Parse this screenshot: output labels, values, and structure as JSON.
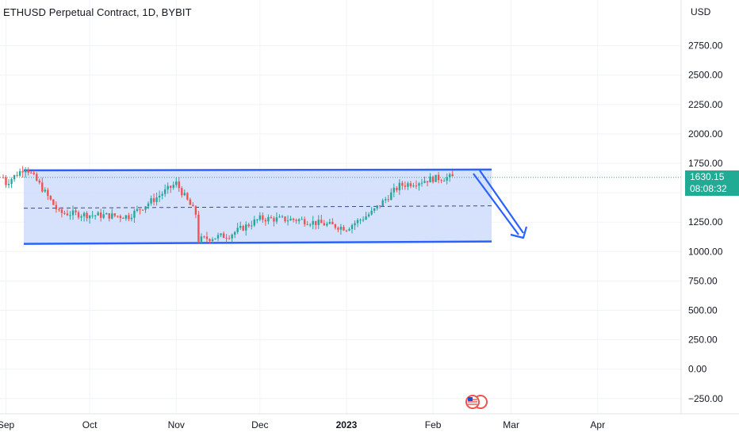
{
  "header": {
    "title": "ETHUSD Perpetual Contract, 1D, BYBIT"
  },
  "price_axis": {
    "unit": "USD"
  },
  "last_price": {
    "value": "1630.15",
    "countdown": "08:08:32"
  },
  "event_icon": "us-flag-economic-event-icon",
  "colors": {
    "up": "#26a69a",
    "down": "#ef5350",
    "channel_line": "#2962ff",
    "channel_fill": "#cfdcfb",
    "arrow": "#2962ff",
    "price_badge": "#22ab94"
  },
  "chart_data": {
    "type": "candlestick",
    "title": "ETHUSD Perpetual Contract, 1D, BYBIT",
    "y_unit": "USD",
    "ylim": [
      -325,
      3000
    ],
    "y_ticks": [
      2750,
      2500,
      2250,
      2000,
      1750,
      1500,
      1250,
      1000,
      750,
      500,
      250,
      0,
      -250
    ],
    "y_tick_labels": [
      "2750.00",
      "2500.00",
      "2250.00",
      "2000.00",
      "1750.00",
      "",
      "1250.00",
      "1000.00",
      "750.00",
      "500.00",
      "250.00",
      "0.00",
      "−250.00"
    ],
    "x_ticks": [
      {
        "label": "Sep",
        "date": "2022-09-01"
      },
      {
        "label": "Oct",
        "date": "2022-10-01"
      },
      {
        "label": "Nov",
        "date": "2022-11-01"
      },
      {
        "label": "Dec",
        "date": "2022-12-01"
      },
      {
        "label": "2023",
        "date": "2023-01-01"
      },
      {
        "label": "Feb",
        "date": "2023-02-01"
      },
      {
        "label": "Mar",
        "date": "2023-03-01"
      },
      {
        "label": "Apr",
        "date": "2023-04-01"
      }
    ],
    "x_range": [
      "2022-08-31",
      "2023-04-22"
    ],
    "series_close": [
      {
        "date": "2022-09-01",
        "close": 1580
      },
      {
        "date": "2022-09-08",
        "close": 1720
      },
      {
        "date": "2022-09-13",
        "close": 1570
      },
      {
        "date": "2022-09-20",
        "close": 1330
      },
      {
        "date": "2022-10-01",
        "close": 1310
      },
      {
        "date": "2022-10-15",
        "close": 1300
      },
      {
        "date": "2022-10-25",
        "close": 1460
      },
      {
        "date": "2022-11-01",
        "close": 1580
      },
      {
        "date": "2022-11-08",
        "close": 1320
      },
      {
        "date": "2022-11-09",
        "close": 1100
      },
      {
        "date": "2022-11-20",
        "close": 1140
      },
      {
        "date": "2022-12-01",
        "close": 1280
      },
      {
        "date": "2022-12-15",
        "close": 1270
      },
      {
        "date": "2023-01-01",
        "close": 1200
      },
      {
        "date": "2023-01-10",
        "close": 1330
      },
      {
        "date": "2023-01-20",
        "close": 1560
      },
      {
        "date": "2023-02-01",
        "close": 1620
      },
      {
        "date": "2023-02-07",
        "close": 1630
      }
    ],
    "drawings": {
      "channel": {
        "upper": 1690,
        "mid": 1375,
        "lower": 1065,
        "start": "2022-09-01",
        "end": "2023-02-11"
      },
      "arrow": {
        "from": {
          "date": "2023-02-10",
          "value": 1650
        },
        "to": {
          "date": "2023-02-24",
          "value": 1080
        }
      }
    },
    "current_price_line": 1630.15
  }
}
